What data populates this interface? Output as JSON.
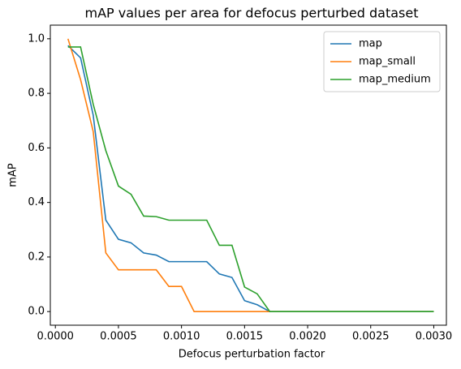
{
  "chart_data": {
    "type": "line",
    "title": "mAP values per area for defocus perturbed dataset",
    "x_label": "Defocus perturbation factor",
    "y_label": "mAP",
    "x": [
      0.0001,
      0.0002,
      0.0003,
      0.0004,
      0.0005,
      0.0006,
      0.0007,
      0.0008,
      0.0009,
      0.001,
      0.0011,
      0.0012,
      0.0013,
      0.0014,
      0.0015,
      0.0016,
      0.0017,
      0.003
    ],
    "series": [
      {
        "name": "map",
        "color": "#1f77b4",
        "values": [
          0.975,
          0.93,
          0.72,
          0.335,
          0.265,
          0.252,
          0.215,
          0.207,
          0.183,
          0.183,
          0.183,
          0.183,
          0.138,
          0.125,
          0.04,
          0.025,
          0,
          0
        ]
      },
      {
        "name": "map_small",
        "color": "#ff7f0e",
        "values": [
          1.0,
          0.85,
          0.66,
          0.215,
          0.153,
          0.153,
          0.153,
          0.153,
          0.092,
          0.092,
          0,
          0,
          0,
          0,
          0,
          0,
          0,
          0
        ]
      },
      {
        "name": "map_medium",
        "color": "#2ca02c",
        "values": [
          0.97,
          0.97,
          0.76,
          0.59,
          0.46,
          0.43,
          0.35,
          0.348,
          0.335,
          0.335,
          0.335,
          0.335,
          0.243,
          0.243,
          0.09,
          0.065,
          0,
          0
        ]
      }
    ],
    "xlim": [
      -4e-05,
      0.0031
    ],
    "ylim": [
      -0.05,
      1.05
    ],
    "xticks": [
      {
        "value": 0,
        "label": "0.0000"
      },
      {
        "value": 0.0005,
        "label": "0.0005"
      },
      {
        "value": 0.001,
        "label": "0.0010"
      },
      {
        "value": 0.0015,
        "label": "0.0015"
      },
      {
        "value": 0.002,
        "label": "0.0020"
      },
      {
        "value": 0.0025,
        "label": "0.0025"
      },
      {
        "value": 0.003,
        "label": "0.0030"
      }
    ],
    "yticks": [
      {
        "value": 0,
        "label": "0.0"
      },
      {
        "value": 0.2,
        "label": "0.2"
      },
      {
        "value": 0.4,
        "label": "0.4"
      },
      {
        "value": 0.6,
        "label": "0.6"
      },
      {
        "value": 0.8,
        "label": "0.8"
      },
      {
        "value": 1,
        "label": "1.0"
      }
    ],
    "legend": "upper right",
    "grid": false
  }
}
